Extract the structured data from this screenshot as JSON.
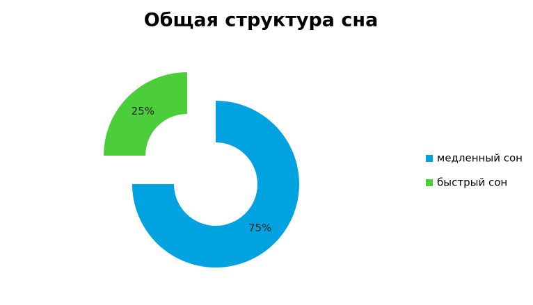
{
  "chart_data": {
    "type": "donut",
    "title": "Общая структура сна",
    "categories": [
      "медленный сон",
      "быстрый сон"
    ],
    "values": [
      75,
      25
    ],
    "value_labels": [
      "75%",
      "25%"
    ],
    "colors": [
      "#00a2df",
      "#4ccd3a"
    ],
    "legend": "right"
  }
}
